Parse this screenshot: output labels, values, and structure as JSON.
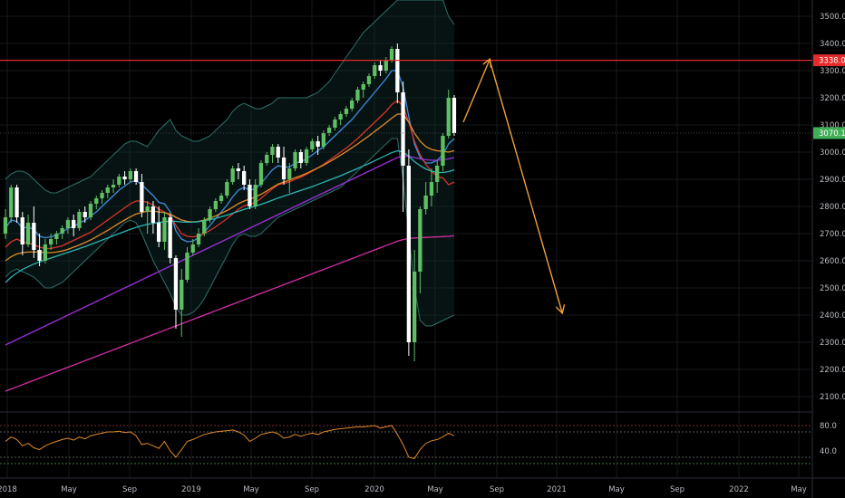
{
  "chart_data": {
    "type": "candlestick",
    "y_axis": {
      "min": 2080,
      "max": 3560,
      "ticks": [
        "3500.0",
        "3400.0",
        "3300.0",
        "3200.0",
        "3100.0",
        "3000.0",
        "2900.0",
        "2800.0",
        "2700.0",
        "2600.0",
        "2500.0",
        "2400.0",
        "2300.0",
        "2200.0",
        "2100.0"
      ]
    },
    "x_axis": {
      "ticks": [
        "2018",
        "May",
        "Sep",
        "2019",
        "May",
        "Sep",
        "2020",
        "May",
        "Sep",
        "2021",
        "May",
        "Sep",
        "2022",
        "May"
      ]
    },
    "horizontal_line": {
      "value": 3338.0,
      "label": "3338.0",
      "color": "#e52b2b"
    },
    "last_price": {
      "value": 3070.1,
      "label": "3070.1",
      "color": "#3fae57"
    },
    "ohlc": [
      [
        2700,
        2790,
        2680,
        2760
      ],
      [
        2760,
        2880,
        2740,
        2870
      ],
      [
        2870,
        2880,
        2740,
        2760
      ],
      [
        2760,
        2780,
        2620,
        2660
      ],
      [
        2660,
        2770,
        2650,
        2740
      ],
      [
        2740,
        2800,
        2610,
        2640
      ],
      [
        2640,
        2700,
        2580,
        2600
      ],
      [
        2600,
        2680,
        2590,
        2660
      ],
      [
        2660,
        2700,
        2640,
        2680
      ],
      [
        2680,
        2710,
        2660,
        2700
      ],
      [
        2700,
        2730,
        2680,
        2720
      ],
      [
        2720,
        2760,
        2700,
        2750
      ],
      [
        2750,
        2770,
        2690,
        2720
      ],
      [
        2720,
        2790,
        2710,
        2780
      ],
      [
        2780,
        2800,
        2740,
        2760
      ],
      [
        2760,
        2820,
        2750,
        2810
      ],
      [
        2810,
        2840,
        2790,
        2830
      ],
      [
        2830,
        2860,
        2810,
        2850
      ],
      [
        2850,
        2880,
        2830,
        2870
      ],
      [
        2870,
        2900,
        2850,
        2880
      ],
      [
        2880,
        2920,
        2870,
        2910
      ],
      [
        2910,
        2930,
        2880,
        2900
      ],
      [
        2900,
        2940,
        2890,
        2930
      ],
      [
        2930,
        2940,
        2880,
        2890
      ],
      [
        2890,
        2920,
        2760,
        2780
      ],
      [
        2780,
        2820,
        2700,
        2800
      ],
      [
        2800,
        2820,
        2700,
        2740
      ],
      [
        2740,
        2800,
        2650,
        2670
      ],
      [
        2670,
        2780,
        2640,
        2760
      ],
      [
        2760,
        2770,
        2590,
        2610
      ],
      [
        2610,
        2620,
        2350,
        2420
      ],
      [
        2420,
        2570,
        2320,
        2530
      ],
      [
        2530,
        2650,
        2520,
        2630
      ],
      [
        2630,
        2680,
        2620,
        2660
      ],
      [
        2660,
        2720,
        2650,
        2700
      ],
      [
        2700,
        2760,
        2690,
        2750
      ],
      [
        2750,
        2800,
        2740,
        2790
      ],
      [
        2790,
        2830,
        2780,
        2820
      ],
      [
        2820,
        2850,
        2810,
        2840
      ],
      [
        2840,
        2900,
        2830,
        2890
      ],
      [
        2890,
        2950,
        2880,
        2940
      ],
      [
        2940,
        2960,
        2900,
        2930
      ],
      [
        2930,
        2950,
        2860,
        2880
      ],
      [
        2880,
        2900,
        2790,
        2800
      ],
      [
        2800,
        2900,
        2790,
        2880
      ],
      [
        2880,
        2970,
        2870,
        2960
      ],
      [
        2960,
        3000,
        2950,
        2990
      ],
      [
        2990,
        3030,
        2960,
        3020
      ],
      [
        3020,
        3030,
        2960,
        2980
      ],
      [
        2980,
        3020,
        2880,
        2900
      ],
      [
        2900,
        2960,
        2850,
        2940
      ],
      [
        2940,
        3010,
        2930,
        3000
      ],
      [
        3000,
        3010,
        2940,
        2960
      ],
      [
        2960,
        3020,
        2950,
        3010
      ],
      [
        3010,
        3050,
        3000,
        3040
      ],
      [
        3040,
        3060,
        2990,
        3020
      ],
      [
        3020,
        3080,
        3010,
        3070
      ],
      [
        3070,
        3100,
        3060,
        3090
      ],
      [
        3090,
        3130,
        3080,
        3120
      ],
      [
        3120,
        3150,
        3100,
        3140
      ],
      [
        3140,
        3170,
        3130,
        3160
      ],
      [
        3160,
        3200,
        3150,
        3190
      ],
      [
        3190,
        3240,
        3180,
        3230
      ],
      [
        3230,
        3260,
        3200,
        3250
      ],
      [
        3250,
        3290,
        3240,
        3280
      ],
      [
        3280,
        3330,
        3270,
        3320
      ],
      [
        3320,
        3340,
        3280,
        3300
      ],
      [
        3300,
        3350,
        3290,
        3340
      ],
      [
        3340,
        3390,
        3330,
        3380
      ],
      [
        3380,
        3400,
        3180,
        3220
      ],
      [
        3220,
        3260,
        2780,
        2950
      ],
      [
        2950,
        3010,
        2250,
        2300
      ],
      [
        2300,
        2640,
        2230,
        2560
      ],
      [
        2560,
        2800,
        2480,
        2790
      ],
      [
        2790,
        2890,
        2770,
        2840
      ],
      [
        2840,
        2940,
        2800,
        2890
      ],
      [
        2890,
        2970,
        2850,
        2950
      ],
      [
        2950,
        3070,
        2930,
        3060
      ],
      [
        3060,
        3230,
        3050,
        3200
      ],
      [
        3200,
        3210,
        3060,
        3070
      ]
    ],
    "series": [
      {
        "color": "#3c8ee0",
        "values": [
          2720,
          2750,
          2745,
          2720,
          2725,
          2715,
          2690,
          2685,
          2688,
          2695,
          2705,
          2720,
          2725,
          2740,
          2748,
          2765,
          2780,
          2800,
          2820,
          2840,
          2860,
          2875,
          2890,
          2895,
          2880,
          2860,
          2840,
          2815,
          2810,
          2780,
          2710,
          2680,
          2670,
          2672,
          2685,
          2705,
          2730,
          2755,
          2780,
          2805,
          2835,
          2860,
          2870,
          2860,
          2865,
          2885,
          2910,
          2935,
          2950,
          2945,
          2945,
          2960,
          2965,
          2975,
          2990,
          3005,
          3020,
          3040,
          3060,
          3080,
          3100,
          3120,
          3145,
          3170,
          3195,
          3220,
          3245,
          3270,
          3300,
          3300,
          3240,
          3130,
          3030,
          2980,
          2960,
          2960,
          2970,
          2990,
          3030,
          3050
        ]
      },
      {
        "color": "#d9342b",
        "values": [
          2650,
          2670,
          2680,
          2670,
          2665,
          2660,
          2650,
          2645,
          2645,
          2650,
          2655,
          2665,
          2675,
          2685,
          2695,
          2705,
          2720,
          2735,
          2750,
          2765,
          2780,
          2795,
          2810,
          2820,
          2820,
          2815,
          2805,
          2790,
          2780,
          2765,
          2730,
          2700,
          2690,
          2688,
          2692,
          2700,
          2712,
          2725,
          2740,
          2755,
          2772,
          2790,
          2802,
          2808,
          2815,
          2830,
          2848,
          2865,
          2880,
          2885,
          2890,
          2900,
          2908,
          2918,
          2930,
          2942,
          2955,
          2970,
          2985,
          3000,
          3015,
          3032,
          3050,
          3070,
          3090,
          3110,
          3130,
          3150,
          3175,
          3190,
          3170,
          3110,
          3040,
          2990,
          2955,
          2930,
          2910,
          2905,
          2880,
          2890
        ]
      },
      {
        "color": "#e28a2a",
        "values": [
          2600,
          2615,
          2625,
          2630,
          2632,
          2633,
          2632,
          2630,
          2630,
          2632,
          2636,
          2642,
          2650,
          2658,
          2667,
          2677,
          2688,
          2700,
          2712,
          2725,
          2738,
          2750,
          2762,
          2772,
          2778,
          2782,
          2783,
          2780,
          2777,
          2772,
          2760,
          2750,
          2745,
          2743,
          2745,
          2750,
          2757,
          2765,
          2775,
          2785,
          2797,
          2810,
          2820,
          2827,
          2835,
          2845,
          2857,
          2870,
          2882,
          2890,
          2897,
          2906,
          2913,
          2922,
          2932,
          2942,
          2952,
          2964,
          2976,
          2989,
          3002,
          3016,
          3030,
          3045,
          3060,
          3076,
          3092,
          3108,
          3125,
          3140,
          3140,
          3110,
          3070,
          3040,
          3020,
          3010,
          3005,
          3003,
          3000,
          3005
        ]
      },
      {
        "color": "#2fb3b3",
        "values": [
          2520,
          2540,
          2555,
          2568,
          2578,
          2588,
          2596,
          2603,
          2610,
          2617,
          2624,
          2631,
          2638,
          2645,
          2652,
          2660,
          2668,
          2676,
          2684,
          2692,
          2700,
          2708,
          2716,
          2723,
          2729,
          2734,
          2738,
          2741,
          2744,
          2746,
          2745,
          2743,
          2742,
          2742,
          2744,
          2747,
          2751,
          2756,
          2762,
          2768,
          2775,
          2782,
          2789,
          2795,
          2801,
          2808,
          2815,
          2823,
          2831,
          2838,
          2845,
          2852,
          2859,
          2866,
          2873,
          2881,
          2889,
          2897,
          2905,
          2913,
          2922,
          2931,
          2940,
          2949,
          2958,
          2968,
          2978,
          2988,
          2998,
          3005,
          3000,
          2985,
          2965,
          2950,
          2938,
          2930,
          2925,
          2925,
          2928,
          2935
        ]
      },
      {
        "color": "#9b2fd6",
        "values": [
          2290,
          2300,
          2310,
          2320,
          2330,
          2340,
          2350,
          2360,
          2370,
          2380,
          2390,
          2400,
          2410,
          2420,
          2430,
          2440,
          2450,
          2460,
          2470,
          2480,
          2490,
          2500,
          2510,
          2520,
          2530,
          2540,
          2550,
          2560,
          2570,
          2580,
          2590,
          2600,
          2610,
          2620,
          2630,
          2640,
          2650,
          2660,
          2670,
          2680,
          2690,
          2700,
          2710,
          2720,
          2730,
          2740,
          2750,
          2760,
          2770,
          2780,
          2790,
          2800,
          2810,
          2820,
          2830,
          2840,
          2850,
          2860,
          2870,
          2880,
          2890,
          2900,
          2910,
          2920,
          2930,
          2940,
          2950,
          2960,
          2970,
          2980,
          2985,
          2985,
          2980,
          2975,
          2972,
          2970,
          2970,
          2972,
          2975,
          2980
        ]
      },
      {
        "color": "#d62fa8",
        "values": [
          2120,
          2128,
          2136,
          2144,
          2152,
          2160,
          2168,
          2176,
          2184,
          2192,
          2200,
          2208,
          2216,
          2224,
          2232,
          2240,
          2248,
          2256,
          2264,
          2272,
          2280,
          2288,
          2296,
          2304,
          2312,
          2320,
          2328,
          2336,
          2344,
          2352,
          2360,
          2368,
          2376,
          2384,
          2392,
          2400,
          2408,
          2416,
          2424,
          2432,
          2440,
          2448,
          2456,
          2464,
          2472,
          2480,
          2488,
          2496,
          2504,
          2512,
          2520,
          2528,
          2536,
          2544,
          2552,
          2560,
          2568,
          2576,
          2584,
          2592,
          2600,
          2608,
          2616,
          2624,
          2632,
          2640,
          2648,
          2656,
          2664,
          2672,
          2678,
          2682,
          2684,
          2685,
          2686,
          2687,
          2688,
          2689,
          2690,
          2692
        ]
      }
    ],
    "bollinger_upper": [
      2900,
      2920,
      2930,
      2930,
      2920,
      2900,
      2880,
      2860,
      2850,
      2850,
      2860,
      2870,
      2880,
      2890,
      2900,
      2910,
      2930,
      2950,
      2970,
      2990,
      3010,
      3030,
      3040,
      3040,
      3030,
      3020,
      3050,
      3080,
      3100,
      3120,
      3080,
      3060,
      3050,
      3040,
      3040,
      3050,
      3060,
      3080,
      3100,
      3120,
      3150,
      3170,
      3180,
      3170,
      3160,
      3160,
      3170,
      3180,
      3200,
      3200,
      3200,
      3200,
      3200,
      3200,
      3210,
      3220,
      3240,
      3260,
      3290,
      3320,
      3350,
      3380,
      3410,
      3440,
      3460,
      3480,
      3500,
      3520,
      3540,
      3560,
      3560,
      3560,
      3560,
      3560,
      3560,
      3560,
      3560,
      3560,
      3500,
      3470
    ],
    "bollinger_lower": [
      2540,
      2560,
      2570,
      2560,
      2550,
      2540,
      2520,
      2500,
      2500,
      2510,
      2520,
      2540,
      2560,
      2580,
      2600,
      2620,
      2640,
      2660,
      2680,
      2700,
      2720,
      2740,
      2750,
      2740,
      2700,
      2650,
      2600,
      2560,
      2520,
      2480,
      2430,
      2400,
      2400,
      2410,
      2430,
      2460,
      2500,
      2540,
      2580,
      2620,
      2660,
      2690,
      2700,
      2690,
      2690,
      2700,
      2720,
      2740,
      2760,
      2770,
      2780,
      2790,
      2800,
      2810,
      2820,
      2830,
      2840,
      2850,
      2860,
      2870,
      2890,
      2910,
      2930,
      2950,
      2970,
      2990,
      3010,
      3030,
      3050,
      3050,
      2900,
      2700,
      2500,
      2380,
      2360,
      2360,
      2370,
      2380,
      2390,
      2400
    ],
    "rsi": {
      "levels": [
        "80.0",
        "40.0"
      ],
      "values": [
        55,
        62,
        58,
        48,
        52,
        45,
        42,
        48,
        52,
        55,
        58,
        60,
        57,
        62,
        59,
        64,
        66,
        68,
        70,
        70,
        71,
        69,
        70,
        64,
        50,
        52,
        48,
        44,
        55,
        40,
        30,
        42,
        55,
        58,
        62,
        66,
        68,
        70,
        71,
        72,
        73,
        70,
        65,
        55,
        60,
        66,
        68,
        70,
        67,
        60,
        62,
        66,
        63,
        66,
        68,
        66,
        70,
        72,
        74,
        75,
        76,
        77,
        78,
        78,
        79,
        80,
        76,
        78,
        80,
        66,
        50,
        30,
        28,
        42,
        52,
        56,
        58,
        62,
        68,
        64
      ]
    },
    "arrows": [
      {
        "from": [
          3110,
          "2020-06"
        ],
        "to": [
          3340,
          "2020-08"
        ]
      },
      {
        "from": [
          3340,
          "2020-08"
        ],
        "to": [
          2410,
          "2021-01"
        ]
      }
    ]
  }
}
